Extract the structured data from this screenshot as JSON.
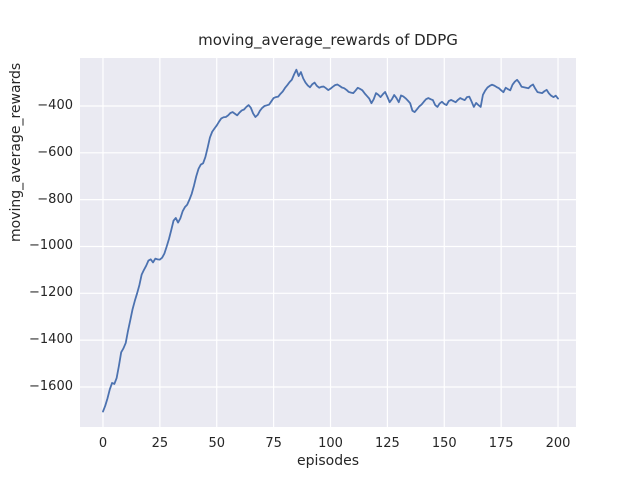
{
  "figure": {
    "title": "moving_average_rewards of DDPG",
    "xlabel": "episodes",
    "ylabel": "moving_average_rewards"
  },
  "chart_data": {
    "type": "line",
    "title": "moving_average_rewards of DDPG",
    "xlabel": "episodes",
    "ylabel": "moving_average_rewards",
    "grid": true,
    "legend": "none",
    "xlim": [
      -10.1,
      207.9
    ],
    "ylim": [
      -1771,
      -195
    ],
    "xticks": [
      {
        "value": 0,
        "label": "0"
      },
      {
        "value": 25,
        "label": "25"
      },
      {
        "value": 50,
        "label": "50"
      },
      {
        "value": 75,
        "label": "75"
      },
      {
        "value": 100,
        "label": "100"
      },
      {
        "value": 125,
        "label": "125"
      },
      {
        "value": 150,
        "label": "150"
      },
      {
        "value": 175,
        "label": "175"
      },
      {
        "value": 200,
        "label": "200"
      }
    ],
    "yticks": [
      {
        "value": -400,
        "label": "−400"
      },
      {
        "value": -600,
        "label": "−600"
      },
      {
        "value": -800,
        "label": "−800"
      },
      {
        "value": -1000,
        "label": "−1000"
      },
      {
        "value": -1200,
        "label": "−1200"
      },
      {
        "value": -1400,
        "label": "−1400"
      },
      {
        "value": -1600,
        "label": "−1600"
      }
    ],
    "series": [
      {
        "name": "moving_average_rewards",
        "color": "#4C72B0",
        "x_start": 0,
        "x_step": 1,
        "values": [
          -1705,
          -1680,
          -1648,
          -1610,
          -1583,
          -1587,
          -1562,
          -1510,
          -1452,
          -1435,
          -1412,
          -1360,
          -1315,
          -1268,
          -1232,
          -1200,
          -1165,
          -1120,
          -1100,
          -1082,
          -1060,
          -1055,
          -1068,
          -1052,
          -1055,
          -1056,
          -1048,
          -1030,
          -1000,
          -968,
          -930,
          -890,
          -878,
          -898,
          -880,
          -850,
          -832,
          -822,
          -800,
          -775,
          -740,
          -700,
          -668,
          -650,
          -645,
          -618,
          -578,
          -535,
          -510,
          -496,
          -483,
          -467,
          -453,
          -448,
          -447,
          -440,
          -430,
          -426,
          -433,
          -440,
          -428,
          -419,
          -415,
          -404,
          -396,
          -408,
          -432,
          -447,
          -438,
          -420,
          -408,
          -400,
          -397,
          -394,
          -380,
          -366,
          -362,
          -360,
          -348,
          -338,
          -323,
          -311,
          -298,
          -288,
          -265,
          -245,
          -272,
          -255,
          -282,
          -300,
          -312,
          -320,
          -307,
          -300,
          -314,
          -322,
          -318,
          -317,
          -324,
          -332,
          -326,
          -318,
          -311,
          -308,
          -314,
          -321,
          -324,
          -331,
          -340,
          -343,
          -345,
          -334,
          -322,
          -327,
          -333,
          -346,
          -357,
          -368,
          -388,
          -371,
          -345,
          -352,
          -362,
          -350,
          -340,
          -361,
          -384,
          -371,
          -353,
          -366,
          -384,
          -355,
          -359,
          -367,
          -377,
          -388,
          -420,
          -426,
          -414,
          -402,
          -394,
          -382,
          -371,
          -366,
          -371,
          -375,
          -396,
          -404,
          -389,
          -382,
          -391,
          -396,
          -379,
          -374,
          -379,
          -384,
          -374,
          -366,
          -371,
          -375,
          -362,
          -360,
          -381,
          -404,
          -387,
          -396,
          -404,
          -352,
          -334,
          -321,
          -314,
          -309,
          -313,
          -319,
          -324,
          -333,
          -341,
          -322,
          -328,
          -333,
          -309,
          -296,
          -288,
          -301,
          -318,
          -320,
          -322,
          -324,
          -314,
          -308,
          -326,
          -341,
          -343,
          -345,
          -337,
          -331,
          -346,
          -356,
          -362,
          -356,
          -368
        ]
      }
    ],
    "style": {
      "figure_bg": "#FFFFFF",
      "axes_bg": "#EAEAF2",
      "grid_color": "#FFFFFF",
      "text_color": "#262626",
      "line_color": "#4C72B0"
    }
  }
}
